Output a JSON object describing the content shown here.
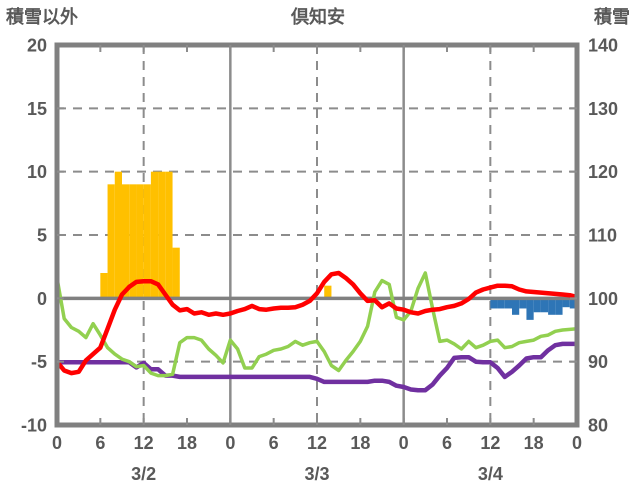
{
  "header": {
    "left_axis_title": "積雪以外",
    "station_title": "倶知安",
    "right_axis_title": "積雪"
  },
  "colors": {
    "bar_positive": "#FFC000",
    "bar_negative": "#2E75B6",
    "line_red": "#FF0000",
    "line_green": "#92D050",
    "line_purple": "#7030A0",
    "grid": "#8C8C8C",
    "border": "#808080",
    "text": "#595959",
    "background": "#FFFFFF"
  },
  "chart_data": {
    "type": "combo-bar-line",
    "title": "倶知安",
    "left_axis": {
      "title": "積雪以外",
      "min": -10,
      "max": 20,
      "tick_values": [
        20,
        15,
        10,
        5,
        0,
        -5,
        -10
      ],
      "tick_labels": [
        "20",
        "15",
        "10",
        "5",
        "0",
        "-5",
        "-10"
      ]
    },
    "right_axis": {
      "title": "積雪",
      "min": 80,
      "max": 140,
      "tick_values": [
        140,
        130,
        120,
        110,
        100,
        90,
        80
      ],
      "tick_labels": [
        "140",
        "130",
        "120",
        "110",
        "100",
        "90",
        "80"
      ]
    },
    "x_axis": {
      "total_hours": 72,
      "hour_label_step": 6,
      "hour_labels": [
        "0",
        "6",
        "12",
        "18",
        "0",
        "6",
        "12",
        "18",
        "0",
        "6",
        "12",
        "18",
        "0"
      ],
      "date_labels": [
        "3/2",
        "3/3",
        "3/4"
      ],
      "date_label_hours": [
        12,
        36,
        60
      ],
      "dashed_vline_hours": [
        12,
        36,
        60
      ],
      "solid_vline_hours": [
        24,
        48
      ]
    },
    "grid": {
      "dashed_hlines_at": [
        15,
        10,
        5,
        -5
      ],
      "zero_line_at": 0
    },
    "series": [
      {
        "name": "bars-orange-hourly",
        "type": "bar",
        "color_key": "bar_positive",
        "points": [
          {
            "h": 6,
            "v": 2
          },
          {
            "h": 7,
            "v": 9
          },
          {
            "h": 8,
            "v": 10
          },
          {
            "h": 9,
            "v": 9
          },
          {
            "h": 10,
            "v": 9
          },
          {
            "h": 11,
            "v": 9
          },
          {
            "h": 12,
            "v": 9
          },
          {
            "h": 13,
            "v": 10
          },
          {
            "h": 14,
            "v": 10
          },
          {
            "h": 15,
            "v": 10
          },
          {
            "h": 16,
            "v": 4
          },
          {
            "h": 37,
            "v": 1
          }
        ]
      },
      {
        "name": "bars-blue-hourly",
        "type": "bar",
        "color_key": "bar_negative",
        "points": [
          {
            "h": 60,
            "v": -0.8
          },
          {
            "h": 61,
            "v": -0.8
          },
          {
            "h": 62,
            "v": -0.8
          },
          {
            "h": 63,
            "v": -1.3
          },
          {
            "h": 64,
            "v": -0.8
          },
          {
            "h": 65,
            "v": -1.7
          },
          {
            "h": 66,
            "v": -1.1
          },
          {
            "h": 67,
            "v": -1.1
          },
          {
            "h": 68,
            "v": -1.3
          },
          {
            "h": 69,
            "v": -1.3
          },
          {
            "h": 70,
            "v": -0.7
          },
          {
            "h": 71,
            "v": -0.8
          }
        ]
      },
      {
        "name": "line-purple",
        "type": "line",
        "color_key": "line_purple",
        "width": 4.5,
        "values": [
          -5.05,
          -5.05,
          -5.05,
          -5.05,
          -5.05,
          -5.05,
          -5.05,
          -5.05,
          -5.05,
          -5.05,
          -5.05,
          -5.45,
          -5.1,
          -5.6,
          -5.6,
          -6.1,
          -6.1,
          -6.2,
          -6.2,
          -6.2,
          -6.2,
          -6.2,
          -6.2,
          -6.2,
          -6.2,
          -6.2,
          -6.2,
          -6.2,
          -6.2,
          -6.2,
          -6.2,
          -6.2,
          -6.2,
          -6.2,
          -6.2,
          -6.2,
          -6.35,
          -6.6,
          -6.6,
          -6.6,
          -6.6,
          -6.6,
          -6.6,
          -6.6,
          -6.5,
          -6.5,
          -6.6,
          -6.9,
          -7.0,
          -7.2,
          -7.25,
          -7.25,
          -6.8,
          -6.1,
          -5.5,
          -4.7,
          -4.65,
          -4.65,
          -5.0,
          -5.05,
          -5.05,
          -5.5,
          -6.2,
          -5.8,
          -5.3,
          -4.75,
          -4.65,
          -4.65,
          -4.1,
          -3.7,
          -3.6,
          -3.6,
          -3.6
        ]
      },
      {
        "name": "line-green",
        "type": "line",
        "color_key": "line_green",
        "width": 3.5,
        "values": [
          1.6,
          -1.6,
          -2.3,
          -2.6,
          -3.1,
          -2.0,
          -2.9,
          -3.9,
          -4.4,
          -4.8,
          -5.0,
          -5.4,
          -5.3,
          -5.9,
          -6.1,
          -6.1,
          -6.0,
          -3.5,
          -3.1,
          -3.1,
          -3.3,
          -4.0,
          -4.5,
          -5.1,
          -3.3,
          -4.0,
          -5.5,
          -5.5,
          -4.6,
          -4.4,
          -4.1,
          -4.0,
          -3.8,
          -3.4,
          -3.7,
          -3.5,
          -3.4,
          -4.2,
          -5.3,
          -5.7,
          -4.9,
          -4.2,
          -3.4,
          -2.2,
          0.5,
          1.4,
          1.1,
          -1.5,
          -1.7,
          -1.0,
          0.8,
          2.0,
          -0.8,
          -3.4,
          -3.3,
          -3.6,
          -4.0,
          -3.4,
          -3.9,
          -3.7,
          -3.4,
          -3.3,
          -3.9,
          -3.8,
          -3.5,
          -3.4,
          -3.3,
          -3.0,
          -2.9,
          -2.6,
          -2.5,
          -2.45,
          -2.4
        ]
      },
      {
        "name": "line-red",
        "type": "line",
        "color_key": "line_red",
        "width": 4.5,
        "values": [
          -5.0,
          -5.7,
          -5.9,
          -5.8,
          -4.9,
          -4.4,
          -3.9,
          -2.4,
          -0.9,
          0.3,
          0.9,
          1.3,
          1.35,
          1.35,
          1.1,
          0.3,
          -0.5,
          -0.95,
          -0.85,
          -1.2,
          -1.1,
          -1.3,
          -1.2,
          -1.3,
          -1.2,
          -1.0,
          -0.85,
          -0.6,
          -0.85,
          -0.9,
          -0.8,
          -0.75,
          -0.75,
          -0.7,
          -0.5,
          -0.2,
          0.4,
          1.3,
          1.9,
          2.0,
          1.6,
          1.1,
          0.4,
          -0.2,
          -0.15,
          -0.7,
          -0.4,
          -0.8,
          -0.9,
          -1.1,
          -1.2,
          -1.0,
          -0.9,
          -0.85,
          -0.7,
          -0.6,
          -0.4,
          -0.05,
          0.45,
          0.7,
          0.85,
          1.0,
          1.0,
          0.95,
          0.7,
          0.55,
          0.5,
          0.45,
          0.4,
          0.35,
          0.3,
          0.25,
          0.1
        ]
      }
    ]
  }
}
